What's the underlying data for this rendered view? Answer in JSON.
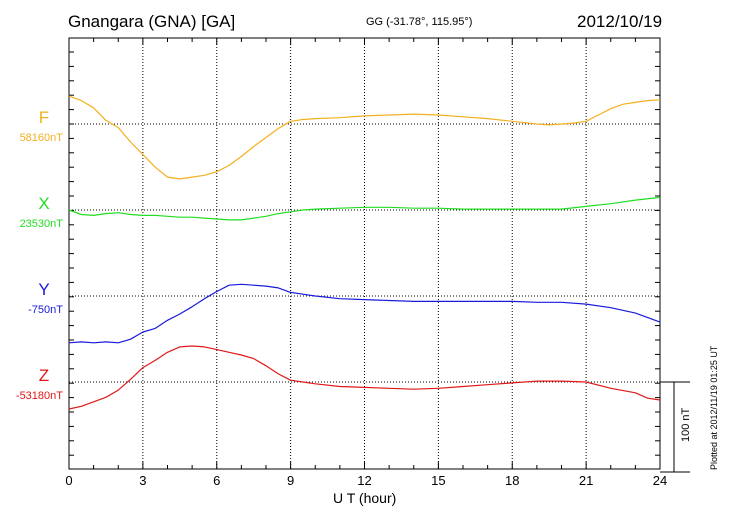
{
  "title": {
    "station": "Gnangara (GNA)  [GA]",
    "coords": "GG (-31.78°, 115.95°)",
    "date": "2012/10/19"
  },
  "credit": "Plotted at 2012/11/19 01:25 UT",
  "scale_label": "100 nT",
  "chart_data": {
    "type": "line",
    "title": "Gnangara (GNA)  [GA]",
    "xlabel": "U T (hour)",
    "ylabel": "",
    "xlim": [
      0,
      24
    ],
    "xticks": [
      "0",
      "3",
      "6",
      "9",
      "12",
      "15",
      "18",
      "21",
      "24"
    ],
    "grid": true,
    "scale_bar_nT": 100,
    "series": [
      {
        "name": "F",
        "baseline_label": "58160nT",
        "color": "#f2b01e",
        "baseline_nT": 58160,
        "x": [
          0,
          0.5,
          1,
          1.5,
          2,
          2.5,
          3,
          3.5,
          4,
          4.5,
          5,
          5.5,
          6,
          6.5,
          7,
          7.5,
          8,
          8.5,
          9,
          9.5,
          10,
          11,
          12,
          13,
          14,
          15,
          16,
          17,
          18,
          19,
          19.5,
          20,
          20.5,
          21,
          21.5,
          22,
          22.5,
          23,
          23.5,
          24
        ],
        "values": [
          31,
          26,
          18,
          4,
          -4,
          -20,
          -34,
          -48,
          -59,
          -61,
          -59,
          -57,
          -53,
          -46,
          -36,
          -25,
          -15,
          -5,
          3,
          5,
          6,
          7,
          9,
          10,
          11,
          10,
          8,
          6,
          3,
          0,
          -1,
          0,
          1,
          3,
          10,
          17,
          22,
          24,
          26,
          27
        ]
      },
      {
        "name": "X",
        "baseline_label": "23530nT",
        "color": "#22dd22",
        "baseline_nT": 23530,
        "x": [
          0,
          0.5,
          1,
          1.5,
          2,
          2.5,
          3,
          3.5,
          4,
          4.5,
          5,
          5.5,
          6,
          6.5,
          7,
          7.5,
          8,
          8.5,
          9,
          9.5,
          10,
          11,
          12,
          13,
          14,
          15,
          16,
          17,
          18,
          19,
          20,
          21,
          22,
          23,
          24
        ],
        "values": [
          0,
          -5,
          -6,
          -4,
          -3,
          -5,
          -6,
          -6,
          -7,
          -8,
          -8,
          -9,
          -10,
          -11,
          -11,
          -9,
          -7,
          -4,
          -2,
          0,
          1,
          2,
          3,
          3,
          2,
          2,
          1,
          1,
          1,
          1,
          1,
          4,
          7,
          11,
          14
        ]
      },
      {
        "name": "Y",
        "baseline_label": "-750nT",
        "color": "#1a1adc",
        "baseline_nT": -750,
        "x": [
          0,
          0.5,
          1,
          1.5,
          2,
          2.5,
          3,
          3.5,
          4,
          4.5,
          5,
          5.5,
          6,
          6.5,
          7,
          7.5,
          8,
          8.5,
          9,
          9.5,
          10,
          11,
          12,
          13,
          14,
          15,
          16,
          17,
          18,
          19,
          20,
          21,
          22,
          23,
          23.5,
          24
        ],
        "values": [
          -52,
          -51,
          -52,
          -51,
          -52,
          -48,
          -40,
          -36,
          -27,
          -20,
          -12,
          -3,
          5,
          12,
          13,
          12,
          11,
          9,
          4,
          2,
          0,
          -3,
          -4,
          -5,
          -6,
          -6,
          -6,
          -6,
          -6,
          -7,
          -7,
          -9,
          -13,
          -19,
          -24,
          -29
        ]
      },
      {
        "name": "Z",
        "baseline_label": "-53180nT",
        "color": "#e01818",
        "baseline_nT": -53180,
        "x": [
          0,
          0.5,
          1,
          1.5,
          2,
          2.5,
          3,
          3.5,
          4,
          4.5,
          5,
          5.5,
          6,
          6.5,
          7,
          7.5,
          8,
          8.5,
          9,
          9.5,
          10,
          11,
          12,
          13,
          14,
          15,
          16,
          17,
          18,
          19,
          20,
          21,
          22,
          23,
          23.5,
          24
        ],
        "values": [
          -30,
          -27,
          -22,
          -17,
          -9,
          3,
          16,
          24,
          33,
          39,
          40,
          39,
          36,
          33,
          30,
          26,
          18,
          9,
          2,
          0,
          -2,
          -5,
          -6,
          -7,
          -8,
          -7,
          -5,
          -3,
          -1,
          1,
          1,
          0,
          -7,
          -12,
          -18,
          -20
        ]
      }
    ]
  }
}
